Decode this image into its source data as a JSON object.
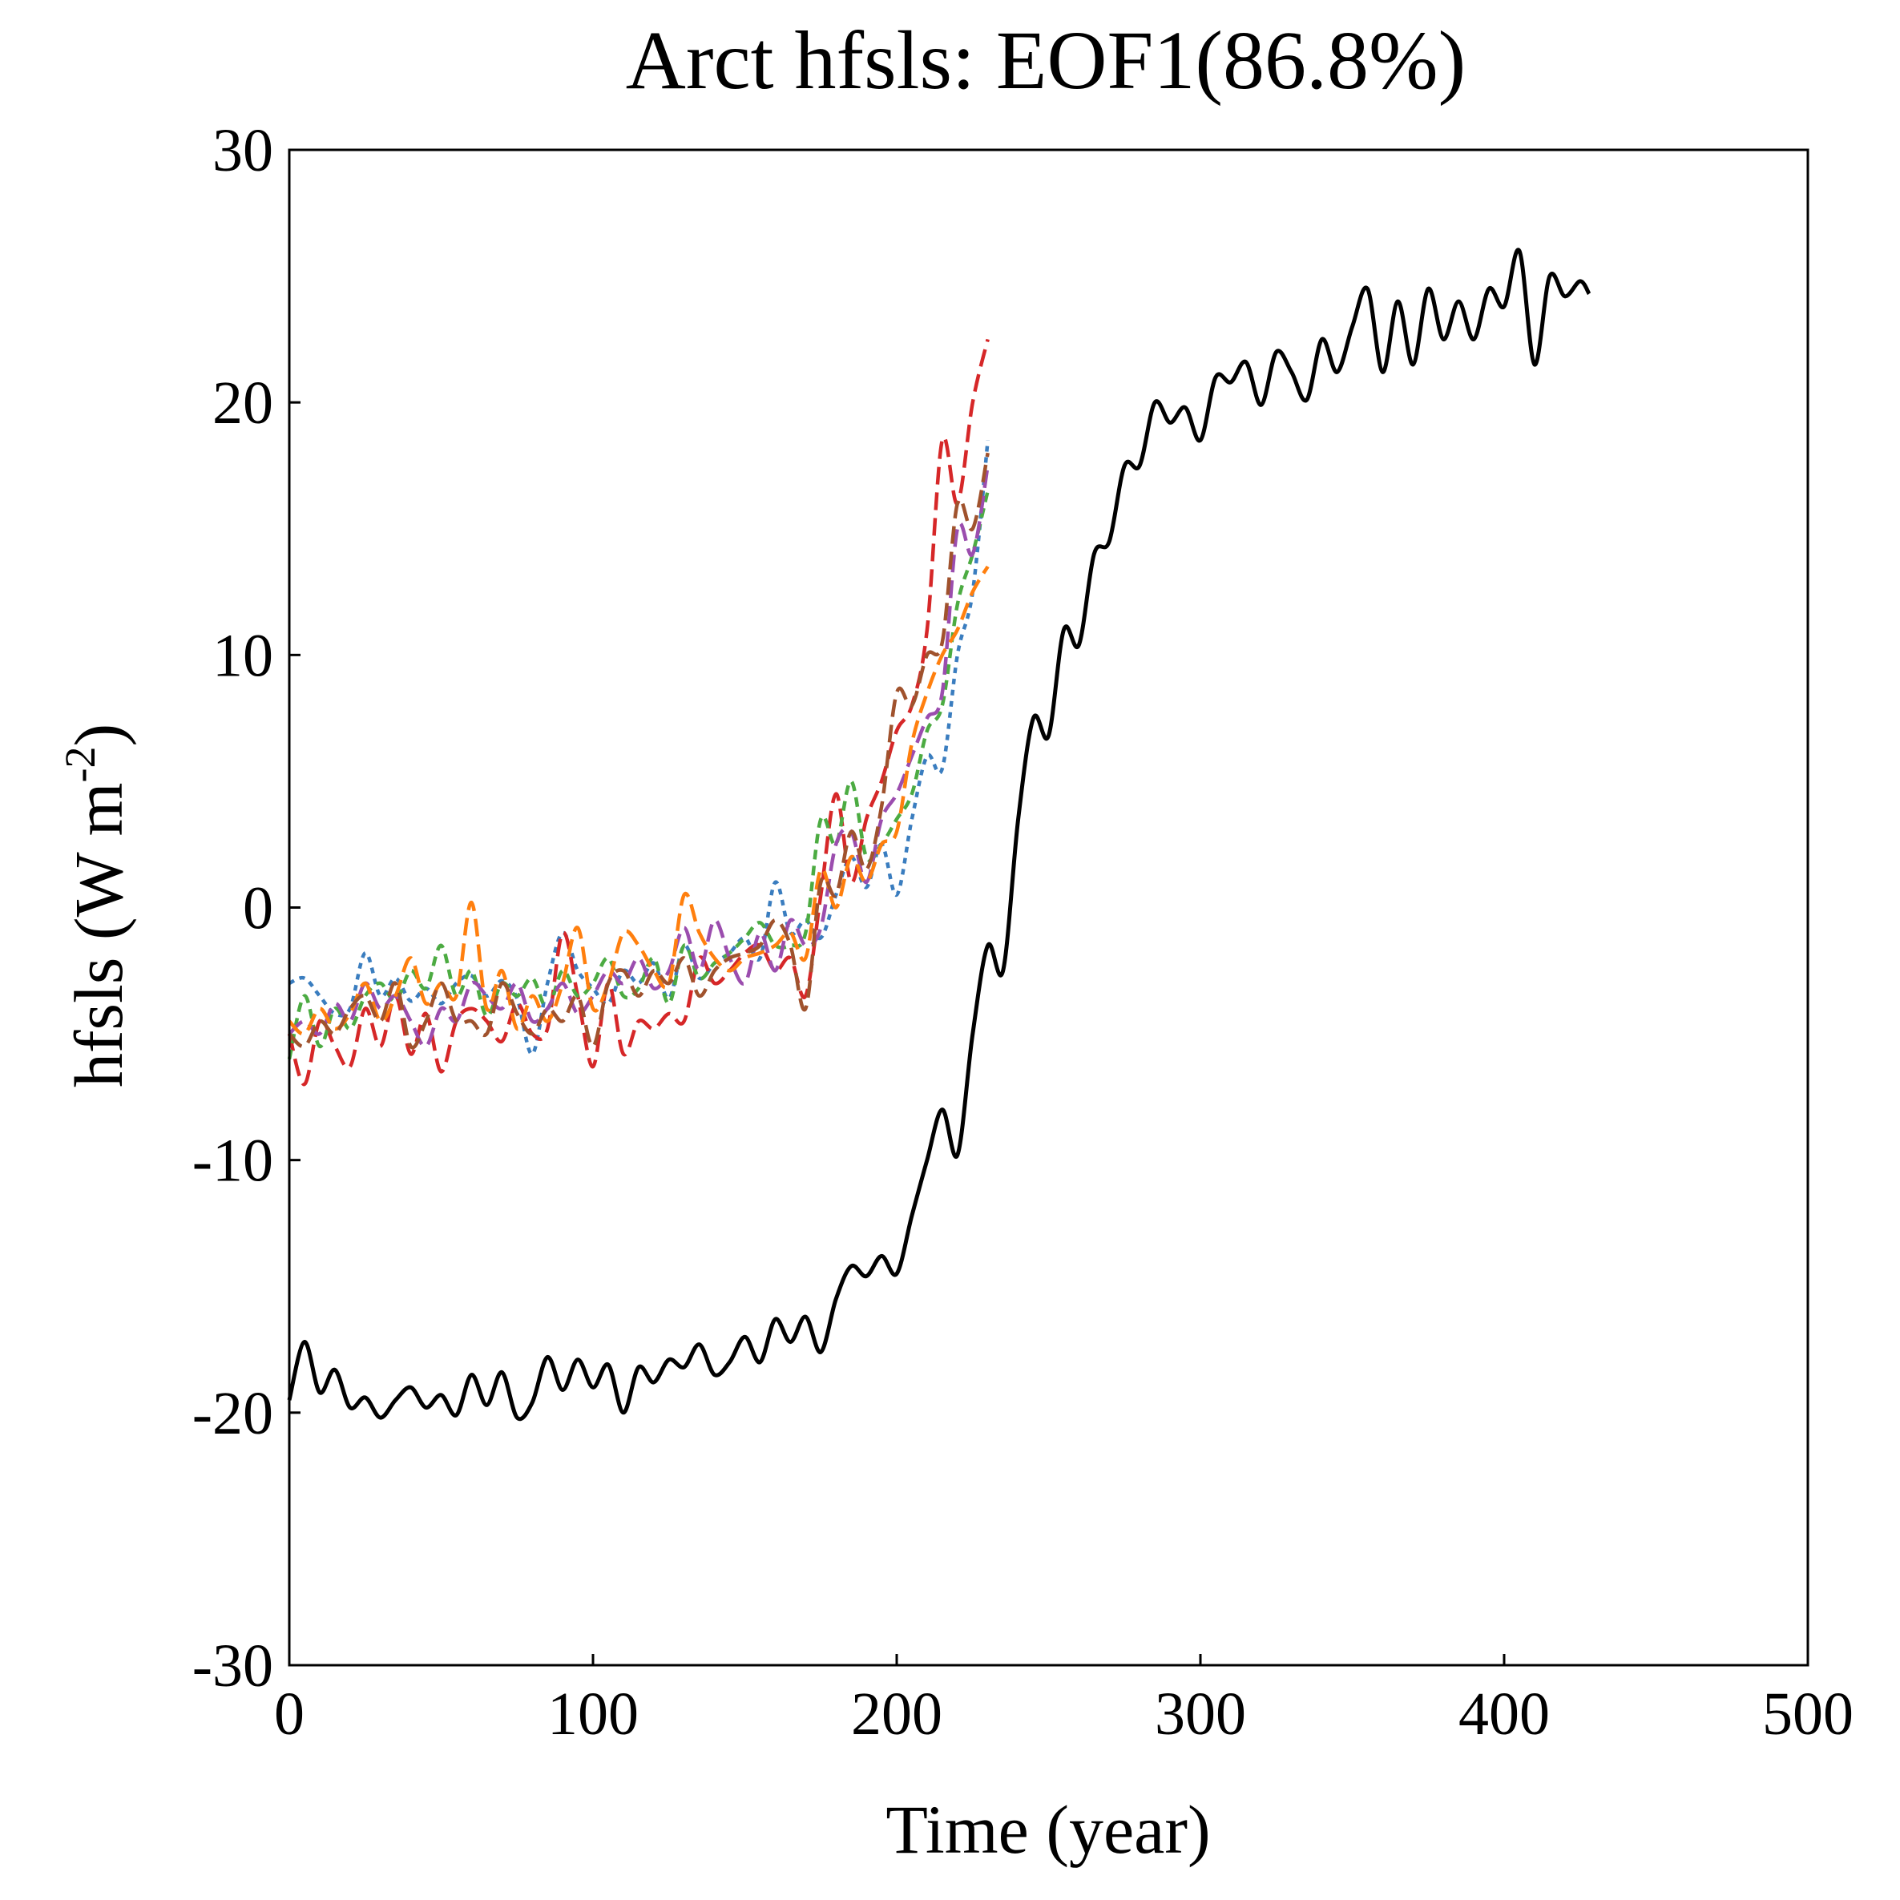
{
  "chart_data": {
    "type": "line",
    "title": "Arct hfsls: EOF1(86.8%)",
    "xlabel": "Time (year)",
    "ylabel_main": "hfsls (W m",
    "ylabel_sup": "-2",
    "ylabel_close": ")",
    "xlim": [
      0,
      500
    ],
    "ylim": [
      -30,
      30
    ],
    "xticks": [
      0,
      100,
      200,
      300,
      400,
      500
    ],
    "xtick_labels": [
      "0",
      "100",
      "200",
      "300",
      "400",
      "500"
    ],
    "yticks": [
      -30,
      -20,
      -10,
      0,
      10,
      20,
      30
    ],
    "ytick_labels": [
      "-30",
      "-20",
      "-10",
      "0",
      "10",
      "20",
      "30"
    ],
    "grid": false,
    "series": [
      {
        "name": "black-solid",
        "color": "#000000",
        "style": "solid",
        "x": [
          0,
          5,
          10,
          15,
          20,
          25,
          30,
          35,
          40,
          45,
          50,
          55,
          60,
          65,
          70,
          75,
          80,
          85,
          90,
          95,
          100,
          105,
          110,
          115,
          120,
          125,
          130,
          135,
          140,
          145,
          150,
          155,
          160,
          165,
          170,
          175,
          180,
          185,
          190,
          195,
          200,
          205,
          210,
          215,
          220,
          225,
          230,
          235,
          240,
          245,
          250,
          255,
          260,
          265,
          270,
          275,
          280,
          285,
          290,
          295,
          300,
          305,
          310,
          315,
          320,
          325,
          330,
          335,
          340,
          345,
          350,
          355,
          360,
          365,
          370,
          375,
          380,
          385,
          390,
          395,
          400,
          405,
          410,
          415,
          420,
          425,
          428
        ],
        "values": [
          -19.5,
          -17.2,
          -19.2,
          -18.3,
          -19.8,
          -19.4,
          -20.2,
          -19.5,
          -19.0,
          -19.8,
          -19.3,
          -20.1,
          -18.5,
          -19.7,
          -18.4,
          -20.2,
          -19.6,
          -17.8,
          -19.1,
          -17.9,
          -19.0,
          -18.1,
          -20.0,
          -18.2,
          -18.8,
          -17.9,
          -18.2,
          -17.3,
          -18.5,
          -18.0,
          -17.0,
          -18.0,
          -16.3,
          -17.2,
          -16.2,
          -17.6,
          -15.5,
          -14.2,
          -14.6,
          -13.8,
          -14.5,
          -12.2,
          -10.0,
          -8.0,
          -9.8,
          -5.0,
          -1.5,
          -2.5,
          3.5,
          7.5,
          6.8,
          11.0,
          10.4,
          14.0,
          14.5,
          17.5,
          17.5,
          20.0,
          19.2,
          19.8,
          18.5,
          21.0,
          20.8,
          21.6,
          19.9,
          22.0,
          21.2,
          20.1,
          22.5,
          21.2,
          23.0,
          24.5,
          21.2,
          24.0,
          21.5,
          24.5,
          22.5,
          24.0,
          22.5,
          24.5,
          23.8,
          26.0,
          21.5,
          25.0,
          24.2,
          24.8,
          24.3
        ]
      },
      {
        "name": "blue-dotted",
        "color": "#3a7dbf",
        "style": "dotted",
        "x": [
          0,
          5,
          10,
          15,
          20,
          25,
          30,
          35,
          40,
          45,
          50,
          55,
          60,
          65,
          70,
          75,
          80,
          85,
          90,
          95,
          100,
          105,
          110,
          115,
          120,
          125,
          130,
          135,
          140,
          145,
          150,
          155,
          160,
          165,
          170,
          175,
          180,
          185,
          190,
          195,
          200,
          205,
          210,
          215,
          220,
          225,
          230
        ],
        "values": [
          -3.0,
          -2.8,
          -3.5,
          -4.2,
          -4.0,
          -1.8,
          -3.5,
          -2.8,
          -3.7,
          -3.2,
          -3.8,
          -3.0,
          -2.7,
          -3.5,
          -2.9,
          -3.6,
          -5.8,
          -3.0,
          -1.0,
          -2.5,
          -3.2,
          -3.8,
          -2.5,
          -3.0,
          -2.2,
          -3.6,
          -1.5,
          -2.8,
          -2.2,
          -1.8,
          -1.2,
          -2.0,
          1.0,
          -1.0,
          -0.5,
          -1.2,
          0.5,
          2.0,
          0.8,
          2.5,
          0.5,
          3.5,
          6.0,
          5.5,
          10.0,
          12.5,
          18.5
        ]
      },
      {
        "name": "red-dashed",
        "color": "#d62728",
        "style": "dashed",
        "x": [
          0,
          5,
          10,
          15,
          20,
          25,
          30,
          35,
          40,
          45,
          50,
          55,
          60,
          65,
          70,
          75,
          80,
          85,
          90,
          95,
          100,
          105,
          110,
          115,
          120,
          125,
          130,
          135,
          140,
          145,
          150,
          155,
          160,
          165,
          170,
          175,
          180,
          185,
          190,
          195,
          200,
          205,
          210,
          215,
          220,
          225,
          230
        ],
        "values": [
          -5.0,
          -7.0,
          -4.5,
          -5.5,
          -6.3,
          -4.0,
          -5.5,
          -3.5,
          -5.8,
          -4.2,
          -6.5,
          -4.5,
          -4.0,
          -4.5,
          -5.3,
          -3.8,
          -5.0,
          -4.8,
          -1.0,
          -3.5,
          -6.3,
          -3.0,
          -5.8,
          -4.5,
          -4.8,
          -4.2,
          -4.5,
          -2.0,
          -3.0,
          -2.5,
          -1.8,
          -1.5,
          -2.5,
          -2.0,
          -3.5,
          0.5,
          4.5,
          1.0,
          3.5,
          5.0,
          7.0,
          8.0,
          11.0,
          18.5,
          16.0,
          20.0,
          22.5
        ]
      },
      {
        "name": "green-dashdot",
        "color": "#4cab42",
        "style": "dashed-fine",
        "x": [
          0,
          5,
          10,
          15,
          20,
          25,
          30,
          35,
          40,
          45,
          50,
          55,
          60,
          65,
          70,
          75,
          80,
          85,
          90,
          95,
          100,
          105,
          110,
          115,
          120,
          125,
          130,
          135,
          140,
          145,
          150,
          155,
          160,
          165,
          170,
          175,
          180,
          185,
          190,
          195,
          200,
          205,
          210,
          215,
          220,
          225,
          230
        ],
        "values": [
          -6.0,
          -3.5,
          -5.5,
          -4.0,
          -4.8,
          -3.5,
          -3.0,
          -3.7,
          -2.5,
          -3.2,
          -1.5,
          -3.5,
          -2.5,
          -4.3,
          -3.0,
          -3.5,
          -2.8,
          -4.0,
          -2.5,
          -3.5,
          -3.0,
          -2.0,
          -3.5,
          -3.2,
          -2.0,
          -3.8,
          -1.5,
          -2.8,
          -2.2,
          -1.8,
          -1.2,
          -0.6,
          -1.5,
          -1.5,
          -1.0,
          3.5,
          2.5,
          5.0,
          2.0,
          2.5,
          3.5,
          4.5,
          7.0,
          8.0,
          12.0,
          14.0,
          16.5
        ]
      },
      {
        "name": "purple-dashed",
        "color": "#9b4dae",
        "style": "dashed",
        "x": [
          0,
          5,
          10,
          15,
          20,
          25,
          30,
          35,
          40,
          45,
          50,
          55,
          60,
          65,
          70,
          75,
          80,
          85,
          90,
          95,
          100,
          105,
          110,
          115,
          120,
          125,
          130,
          135,
          140,
          145,
          150,
          155,
          160,
          165,
          170,
          175,
          180,
          185,
          190,
          195,
          200,
          205,
          210,
          215,
          220,
          225,
          230
        ],
        "values": [
          -5.0,
          -4.5,
          -5.0,
          -3.8,
          -4.5,
          -3.0,
          -4.0,
          -3.5,
          -4.5,
          -5.5,
          -4.0,
          -4.5,
          -3.0,
          -3.5,
          -4.0,
          -3.0,
          -4.5,
          -4.0,
          -3.0,
          -4.2,
          -3.5,
          -2.5,
          -3.0,
          -2.0,
          -3.2,
          -2.5,
          -0.8,
          -2.5,
          -0.5,
          -2.0,
          -3.0,
          -1.0,
          -2.5,
          -0.5,
          -1.5,
          -0.8,
          2.5,
          3.0,
          1.0,
          3.5,
          4.5,
          6.0,
          7.5,
          8.5,
          15.0,
          14.0,
          17.5
        ]
      },
      {
        "name": "orange-dashed",
        "color": "#ff7f0e",
        "style": "dashed",
        "x": [
          0,
          5,
          10,
          15,
          20,
          25,
          30,
          35,
          40,
          45,
          50,
          55,
          60,
          65,
          70,
          75,
          80,
          85,
          90,
          95,
          100,
          105,
          110,
          115,
          120,
          125,
          130,
          135,
          140,
          145,
          150,
          155,
          160,
          165,
          170,
          175,
          180,
          185,
          190,
          195,
          200,
          205,
          210,
          215,
          220,
          225,
          230
        ],
        "values": [
          -4.5,
          -5.0,
          -4.0,
          -4.8,
          -4.2,
          -3.0,
          -4.5,
          -3.5,
          -2.0,
          -3.8,
          -3.0,
          -3.5,
          0.2,
          -4.0,
          -2.5,
          -4.8,
          -3.5,
          -4.5,
          -3.0,
          -0.8,
          -4.0,
          -3.0,
          -1.0,
          -1.5,
          -2.5,
          -3.0,
          0.5,
          -1.0,
          -2.0,
          -2.5,
          -2.0,
          -1.8,
          -1.5,
          -1.0,
          -2.0,
          1.5,
          0.0,
          2.0,
          1.0,
          2.5,
          3.0,
          6.5,
          8.5,
          10.0,
          11.0,
          12.5,
          13.5
        ]
      },
      {
        "name": "brown-dashed",
        "color": "#a0522d",
        "style": "dashed",
        "x": [
          0,
          5,
          10,
          15,
          20,
          25,
          30,
          35,
          40,
          45,
          50,
          55,
          60,
          65,
          70,
          75,
          80,
          85,
          90,
          95,
          100,
          105,
          110,
          115,
          120,
          125,
          130,
          135,
          140,
          145,
          150,
          155,
          160,
          165,
          170,
          175,
          180,
          185,
          190,
          195,
          200,
          205,
          210,
          215,
          220,
          225,
          230
        ],
        "values": [
          -5.0,
          -5.5,
          -4.5,
          -5.0,
          -4.0,
          -3.5,
          -4.5,
          -3.0,
          -5.5,
          -4.5,
          -3.0,
          -4.5,
          -4.5,
          -5.0,
          -3.0,
          -4.2,
          -5.0,
          -4.0,
          -4.5,
          -3.5,
          -5.5,
          -3.0,
          -2.5,
          -3.5,
          -2.5,
          -3.0,
          -2.0,
          -3.5,
          -2.5,
          -2.0,
          -1.8,
          -1.5,
          -0.5,
          -1.5,
          -4.0,
          1.0,
          0.5,
          3.0,
          1.5,
          4.0,
          8.5,
          8.0,
          10.0,
          10.5,
          16.0,
          15.0,
          18.0
        ]
      }
    ]
  }
}
